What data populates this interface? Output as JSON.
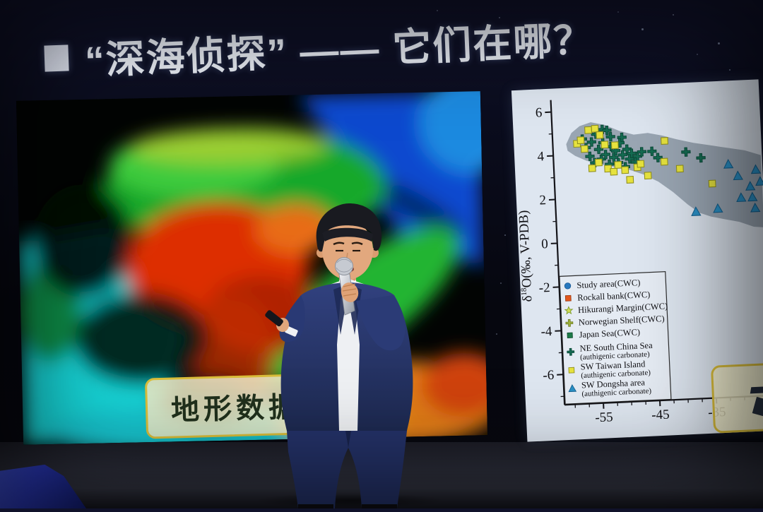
{
  "slide": {
    "title": "“深海侦探” —— 它们在哪？",
    "terrain_label": "地形数据",
    "right_label_text": ""
  },
  "colors": {
    "title_text": "#eef2fa",
    "label_box_bg": "#f2ecc8",
    "label_box_border": "#d9bd3a",
    "chart_bg": "#dee6f0",
    "shaded_blob": "#94a1ae",
    "suit": "#2a3a74",
    "shirt": "#f2f3f6",
    "skin": "#e0a67c",
    "hair": "#191a20",
    "microphone": "#c2c6ce",
    "stage_floor": "#272933",
    "monitor_wedge": "#2a38b8"
  },
  "chart_data": {
    "type": "scatter",
    "title": "",
    "ylabel": "δ18O(‰, V-PDB)",
    "ylabel_parts": {
      "prefix": "δ",
      "sup": "18",
      "rest": "O(‰, V-PDB)"
    },
    "x_ticks": [
      -55,
      -45,
      -35
    ],
    "y_ticks": [
      6,
      4,
      2,
      0,
      -2,
      -4,
      -6
    ],
    "xlim": [
      -62,
      -25
    ],
    "ylim": [
      -7.5,
      6.5
    ],
    "grid": false,
    "legend_position": "lower left",
    "plot_bg": "#dee6f0",
    "shaded_region": {
      "color": "#94a1ae",
      "points": [
        [
          -59.5,
          4.5
        ],
        [
          -58.5,
          5.0
        ],
        [
          -57.0,
          5.3
        ],
        [
          -55.0,
          5.45
        ],
        [
          -52.5,
          5.3
        ],
        [
          -50.0,
          5.0
        ],
        [
          -47.5,
          4.8
        ],
        [
          -45.0,
          4.85
        ],
        [
          -42.5,
          4.7
        ],
        [
          -40.0,
          4.5
        ],
        [
          -37.0,
          4.3
        ],
        [
          -34.0,
          4.15
        ],
        [
          -31.0,
          4.0
        ],
        [
          -28.0,
          3.85
        ],
        [
          -25.2,
          3.6
        ],
        [
          -25.2,
          0.3
        ],
        [
          -27.0,
          0.35
        ],
        [
          -29.5,
          0.6
        ],
        [
          -32.0,
          0.75
        ],
        [
          -34.5,
          0.9
        ],
        [
          -36.5,
          1.1
        ],
        [
          -38.5,
          1.5
        ],
        [
          -41.0,
          2.1
        ],
        [
          -43.5,
          2.6
        ],
        [
          -46.0,
          2.95
        ],
        [
          -48.5,
          3.2
        ],
        [
          -51.0,
          3.35
        ],
        [
          -53.5,
          3.5
        ],
        [
          -56.0,
          3.7
        ],
        [
          -58.0,
          3.95
        ],
        [
          -59.3,
          4.2
        ]
      ]
    },
    "legend": [
      {
        "label": "Study area(CWC)",
        "marker": "circle",
        "color": "#2878be",
        "stroke": "#1a5a94"
      },
      {
        "label": "Rockall bank(CWC)",
        "marker": "square",
        "color": "#e3571c",
        "stroke": "#9c3a10"
      },
      {
        "label": "Hikurangi Margin(CWC)",
        "marker": "star",
        "color": "#d3dc55",
        "stroke": "#7a9a28"
      },
      {
        "label": "Norwegian Shelf(CWC)",
        "marker": "x",
        "color": "#9fb23c",
        "stroke": "#6e7e24"
      },
      {
        "label": "Japan Sea(CWC)",
        "marker": "diamond",
        "color": "#1d7a48",
        "stroke": "#0f4c2c"
      },
      {
        "label": "NE South China Sea",
        "sublabel": "(authigenic carbonate)",
        "marker": "plus",
        "color": "#156b52",
        "stroke": "#0c4a38"
      },
      {
        "label": "SW Taiwan Island",
        "sublabel": "(authigenic carbonate)",
        "marker": "square",
        "color": "#e6e23e",
        "stroke": "#8f8f1e"
      },
      {
        "label": "SW Dongsha area",
        "sublabel": "(authigenic carbonate)",
        "marker": "triangle",
        "color": "#2a8fc4",
        "stroke": "#14608f"
      }
    ],
    "series": [
      {
        "name": "NE South China Sea (authigenic carbonate)",
        "marker": "plus",
        "color": "#156b52",
        "stroke": "#0c4a38",
        "points": [
          [
            -56.6,
            4.7
          ],
          [
            -56.0,
            4.3
          ],
          [
            -55.4,
            3.9
          ],
          [
            -55.0,
            4.55
          ],
          [
            -54.6,
            3.6
          ],
          [
            -54.2,
            4.9
          ],
          [
            -53.8,
            4.2
          ],
          [
            -53.4,
            3.75
          ],
          [
            -53.0,
            4.5
          ],
          [
            -53.0,
            5.1
          ],
          [
            -52.6,
            3.95
          ],
          [
            -52.2,
            5.05
          ],
          [
            -52.0,
            3.5
          ],
          [
            -51.6,
            4.3
          ],
          [
            -51.6,
            4.75
          ],
          [
            -51.2,
            3.8
          ],
          [
            -50.8,
            4.1
          ],
          [
            -50.4,
            3.55
          ],
          [
            -50.0,
            4.45
          ],
          [
            -49.6,
            4.7
          ],
          [
            -49.6,
            3.9
          ],
          [
            -49.2,
            3.35
          ],
          [
            -48.8,
            4.15
          ],
          [
            -48.4,
            3.7
          ],
          [
            -48.0,
            3.95
          ],
          [
            -47.4,
            3.55
          ],
          [
            -47.0,
            3.8
          ],
          [
            -46.2,
            4.0
          ],
          [
            -44.4,
            4.0
          ],
          [
            -43.4,
            3.7
          ],
          [
            -38.4,
            3.9
          ],
          [
            -35.8,
            3.6
          ]
        ]
      },
      {
        "name": "SW Taiwan Island (authigenic carbonate)",
        "marker": "square",
        "color": "#e6e23e",
        "stroke": "#8f8f1e",
        "points": [
          [
            -57.6,
            4.5
          ],
          [
            -56.9,
            4.65
          ],
          [
            -56.3,
            4.25
          ],
          [
            -55.5,
            5.1
          ],
          [
            -54.3,
            5.15
          ],
          [
            -53.5,
            4.85
          ],
          [
            -55.1,
            3.35
          ],
          [
            -53.9,
            3.6
          ],
          [
            -52.7,
            4.4
          ],
          [
            -52.3,
            3.3
          ],
          [
            -51.3,
            3.15
          ],
          [
            -50.9,
            4.35
          ],
          [
            -50.5,
            3.45
          ],
          [
            -49.3,
            3.2
          ],
          [
            -48.5,
            2.75
          ],
          [
            -47.1,
            3.3
          ],
          [
            -46.5,
            3.45
          ],
          [
            -45.3,
            2.9
          ],
          [
            -42.1,
            4.45
          ],
          [
            -42.3,
            3.5
          ],
          [
            -39.6,
            3.15
          ],
          [
            -34.0,
            2.4
          ]
        ]
      },
      {
        "name": "SW Dongsha area (authigenic carbonate)",
        "marker": "triangle",
        "color": "#2a8fc4",
        "stroke": "#14608f",
        "points": [
          [
            -31.0,
            3.25
          ],
          [
            -29.4,
            2.7
          ],
          [
            -27.3,
            2.2
          ],
          [
            -29.0,
            1.7
          ],
          [
            -27.0,
            1.7
          ],
          [
            -37.1,
            1.15
          ],
          [
            -33.2,
            1.25
          ],
          [
            -26.2,
            2.95
          ],
          [
            -25.5,
            2.4
          ],
          [
            -26.6,
            1.2
          ]
        ]
      }
    ]
  }
}
